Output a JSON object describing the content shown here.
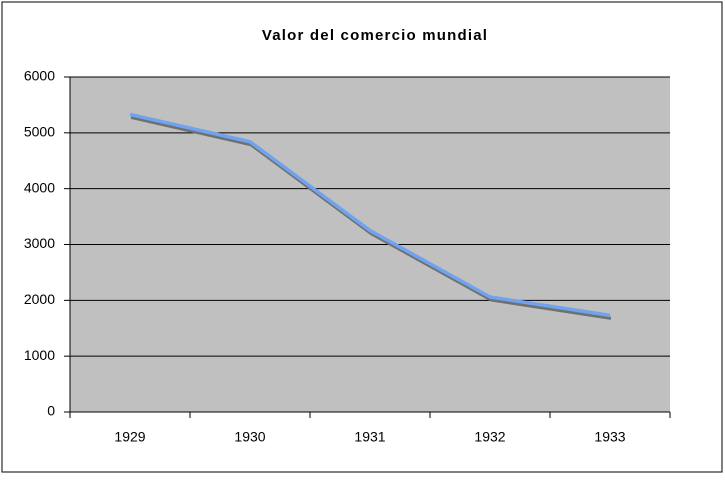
{
  "chart_data": {
    "type": "line",
    "title": "Valor del comercio mundial",
    "categories": [
      "1929",
      "1930",
      "1931",
      "1932",
      "1933"
    ],
    "values": [
      5330,
      4840,
      3250,
      2060,
      1730
    ],
    "color": "#6fa3ef",
    "ylim": [
      0,
      6000
    ],
    "yticks": [
      0,
      1000,
      2000,
      3000,
      4000,
      5000,
      6000
    ],
    "grid": true
  }
}
